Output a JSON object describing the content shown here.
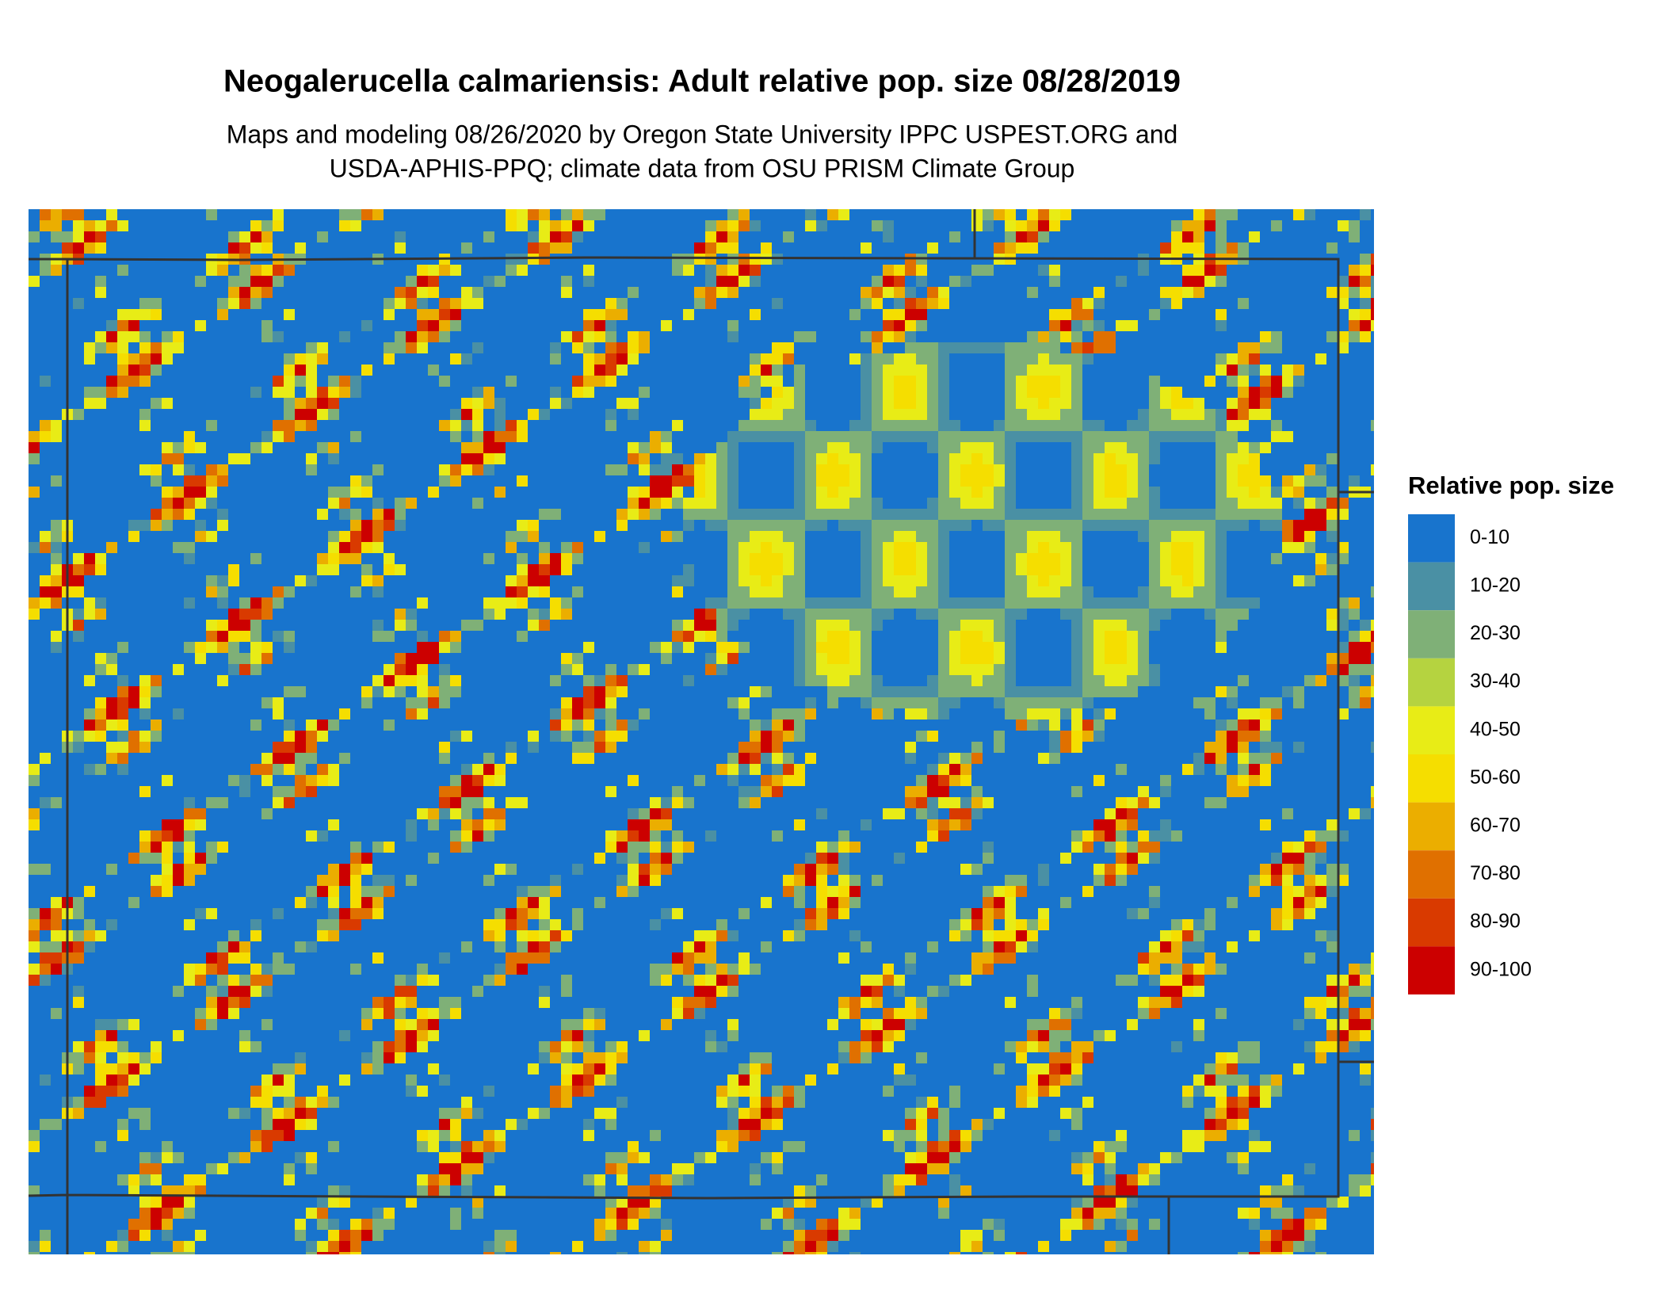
{
  "header": {
    "title": "Neogalerucella calmariensis: Adult relative pop. size 08/28/2019",
    "subtitle": [
      "Maps and modeling 08/26/2020 by Oregon State University IPPC USPEST.ORG and",
      "USDA-APHIS-PPQ; climate data from OSU PRISM Climate Group"
    ]
  },
  "legend": {
    "title": "Relative pop. size",
    "items": [
      {
        "label": "0-10",
        "color": "#1874cd"
      },
      {
        "label": "10-20",
        "color": "#4a90a4"
      },
      {
        "label": "20-30",
        "color": "#7fb077"
      },
      {
        "label": "30-40",
        "color": "#b5d340"
      },
      {
        "label": "40-50",
        "color": "#e8ec16"
      },
      {
        "label": "50-60",
        "color": "#f5de00"
      },
      {
        "label": "60-70",
        "color": "#ebae00"
      },
      {
        "label": "70-80",
        "color": "#e07000"
      },
      {
        "label": "80-90",
        "color": "#d93a00"
      },
      {
        "label": "90-100",
        "color": "#cc0000"
      }
    ]
  }
}
